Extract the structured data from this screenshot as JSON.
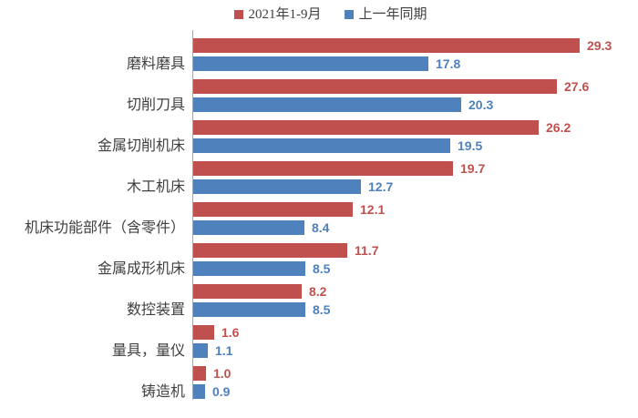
{
  "chart_data": {
    "type": "bar",
    "orientation": "horizontal",
    "title": "",
    "xlabel": "",
    "ylabel": "",
    "grid": false,
    "legend_position": "top",
    "value_labels": true,
    "xlim": [
      0,
      31
    ],
    "categories": [
      "磨料磨具",
      "切削刀具",
      "金属切削机床",
      "木工机床",
      "机床功能部件（含零件）",
      "金属成形机床",
      "数控装置",
      "量具，量仪",
      "铸造机"
    ],
    "series": [
      {
        "name": "2021年1-9月",
        "color": "#c0504d",
        "values": [
          29.3,
          27.6,
          26.2,
          19.7,
          12.1,
          11.7,
          8.2,
          1.6,
          1.0
        ]
      },
      {
        "name": "上一年同期",
        "color": "#4f81bd",
        "values": [
          17.8,
          20.3,
          19.5,
          12.7,
          8.4,
          8.5,
          8.5,
          1.1,
          0.9
        ]
      }
    ]
  },
  "colors": {
    "series_current": "#c0504d",
    "series_previous": "#4f81bd",
    "axis_line": "#a6a6a6",
    "label_text": "#3f3f3f",
    "background": "#ffffff"
  }
}
